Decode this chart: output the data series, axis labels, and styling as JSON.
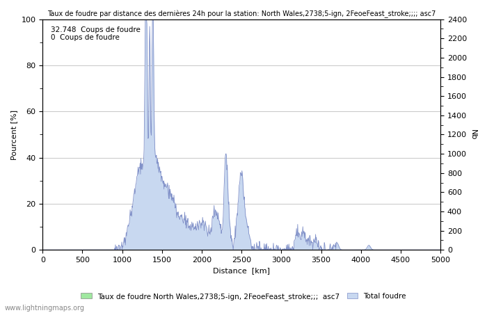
{
  "title": "Taux de foudre par distance des dernières 24h pour la station: North Wales,2738;5-ign, 2FeoeFeast_stroke;;;; asc7",
  "xlabel": "Distance  [km]",
  "ylabel_left": "Pourcent [%]",
  "ylabel_right": "Nb",
  "annotation_line1": "32.748  Coups de foudre",
  "annotation_line2": "0  Coups de foudre",
  "legend_label1": "Taux de foudre North Wales,2738;5-ign, 2FeoeFeast_stroke;;;  asc7",
  "legend_label2": "Total foudre",
  "watermark": "www.lightningmaps.org",
  "xlim": [
    0,
    5000
  ],
  "ylim_left": [
    0,
    100
  ],
  "ylim_right": [
    0,
    2400
  ],
  "xticks": [
    0,
    500,
    1000,
    1500,
    2000,
    2500,
    3000,
    3500,
    4000,
    4500,
    5000
  ],
  "yticks_left": [
    0,
    20,
    40,
    60,
    80,
    100
  ],
  "yticks_right": [
    0,
    200,
    400,
    600,
    800,
    1000,
    1200,
    1400,
    1600,
    1800,
    2000,
    2200,
    2400
  ],
  "color_fill": "#c8d8f0",
  "color_line": "#8090c8",
  "color_green_fill": "#a0e8a0",
  "background_color": "#ffffff",
  "grid_color": "#b0b0b0"
}
